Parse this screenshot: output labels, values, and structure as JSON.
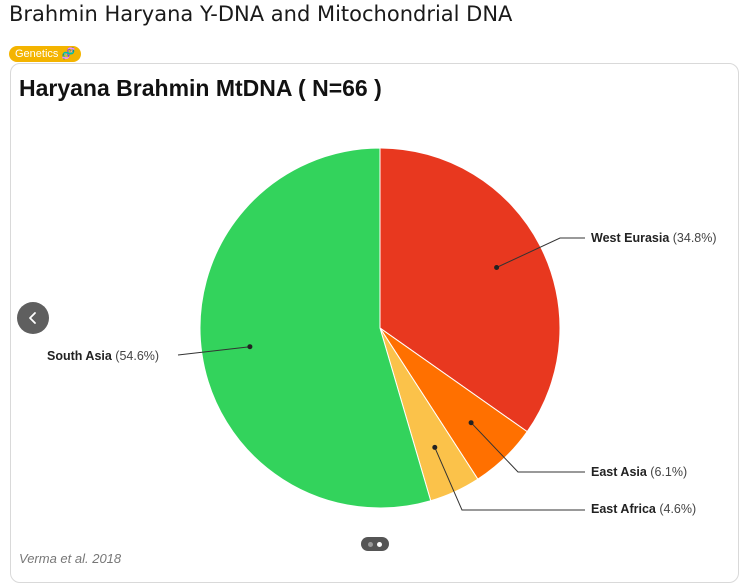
{
  "page": {
    "title": "Brahmin Haryana Y-DNA and Mitochondrial DNA",
    "tag": "Genetics 🧬"
  },
  "card": {
    "source": "Verma et al. 2018"
  },
  "carousel": {
    "prev_icon": "chevron-left-icon",
    "pages": 2,
    "active_page": 2
  },
  "chart_data": {
    "type": "pie",
    "title": "Haryana Brahmin MtDNA ( N=66 )",
    "slices": [
      {
        "name": "West Eurasia",
        "value": 34.8,
        "label": "(34.8%)",
        "color": "#e8381f"
      },
      {
        "name": "East Asia",
        "value": 6.1,
        "label": "(6.1%)",
        "color": "#ff7000"
      },
      {
        "name": "East Africa",
        "value": 4.6,
        "label": "(4.6%)",
        "color": "#fbc24a"
      },
      {
        "name": "South Asia",
        "value": 54.6,
        "label": "(54.6%)",
        "color": "#33d35c"
      }
    ],
    "legend": "none"
  }
}
